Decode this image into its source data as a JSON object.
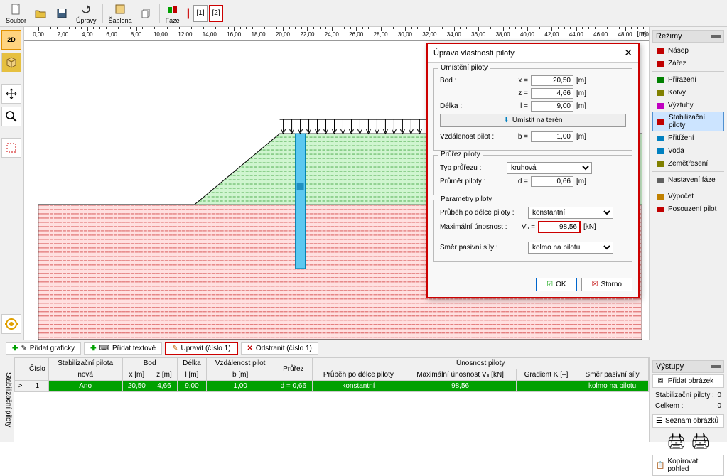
{
  "toolbar": {
    "file_label": "Soubor",
    "edit_label": "Úpravy",
    "template_label": "Šablona",
    "phase_label": "Fáze",
    "phases": [
      "[1]",
      "[2]"
    ]
  },
  "ruler": {
    "start": 0,
    "end": 50,
    "step": 2,
    "unit": "[m]"
  },
  "left_tools": {
    "btn_2d": "2D",
    "btn_3d": "3D"
  },
  "modes": {
    "header": "Režimy",
    "items": [
      {
        "icon": "nasep",
        "label": "Násep",
        "color": "#c00000"
      },
      {
        "icon": "zarez",
        "label": "Zářez",
        "color": "#c00000"
      },
      {
        "icon": "prirazeni",
        "label": "Přiřazení",
        "color": "#008000"
      },
      {
        "icon": "kotvy",
        "label": "Kotvy",
        "color": "#808000"
      },
      {
        "icon": "vyztuhy",
        "label": "Výztuhy",
        "color": "#c000c0"
      },
      {
        "icon": "piloty",
        "label": "Stabilizační piloty",
        "color": "#c00000",
        "active": true
      },
      {
        "icon": "pritizeni",
        "label": "Přitížení",
        "color": "#0080c0"
      },
      {
        "icon": "voda",
        "label": "Voda",
        "color": "#0080c0"
      },
      {
        "icon": "zemetreseni",
        "label": "Zemětřesení",
        "color": "#808000"
      },
      {
        "icon": "nastaveni",
        "label": "Nastavení fáze",
        "color": "#606060"
      },
      {
        "icon": "vypocet",
        "label": "Výpočet",
        "color": "#c08000"
      },
      {
        "icon": "posouzeni",
        "label": "Posouzení pilot",
        "color": "#c00000"
      }
    ]
  },
  "actions": {
    "add_graphic": "Přidat graficky",
    "add_text": "Přidat textově",
    "edit": "Upravit (číslo 1)",
    "delete": "Odstranit (číslo 1)"
  },
  "table": {
    "side_label": "Stabilizační piloty",
    "headers_row1": [
      "Číslo",
      "Stabilizační pilota",
      "Bod",
      "",
      "Délka",
      "Vzdálenost pilot",
      "Průřez",
      "Únosnost piloty",
      "",
      "",
      ""
    ],
    "headers_row2": [
      "",
      "nová",
      "x [m]",
      "z [m]",
      "l [m]",
      "b [m]",
      "",
      "Průběh po délce piloty",
      "Maximální únosnost Vᵤ [kN]",
      "Gradient K [–]",
      "Směr pasivní síly"
    ],
    "row": {
      "num": "1",
      "nova": "Ano",
      "x": "20,50",
      "z": "4,66",
      "l": "9,00",
      "b": "1,00",
      "prurez": "d = 0,66",
      "prubeh": "konstantní",
      "vu": "98,56",
      "gradient": "",
      "smer": "kolmo na pilotu"
    }
  },
  "outputs": {
    "header": "Výstupy",
    "add_image": "Přidat obrázek",
    "stab_label": "Stabilizační piloty :",
    "stab_val": "0",
    "total_label": "Celkem :",
    "total_val": "0",
    "image_list": "Seznam obrázků",
    "copy_view": "Kopírovat pohled"
  },
  "dialog": {
    "title": "Úprava vlastností piloty",
    "group_location": "Umístění piloty",
    "label_bod": "Bod :",
    "var_x": "x =",
    "val_x": "20,50",
    "var_z": "z =",
    "val_z": "4,66",
    "label_delka": "Délka :",
    "var_l": "l =",
    "val_l": "9,00",
    "btn_terrain": "Umístit na terén",
    "label_vzdal": "Vzdálenost pilot :",
    "var_b": "b =",
    "val_b": "1,00",
    "group_prurez": "Průřez piloty",
    "label_typ": "Typ průřezu :",
    "val_typ": "kruhová",
    "label_prumer": "Průměr piloty :",
    "var_d": "d =",
    "val_d": "0,66",
    "group_param": "Parametry piloty",
    "label_prubeh": "Průběh po délce piloty :",
    "val_prubeh": "konstantní",
    "label_max": "Maximální únosnost :",
    "var_vu": "Vᵤ =",
    "val_vu": "98,56",
    "unit_kn": "[kN]",
    "label_smer": "Směr pasivní síly :",
    "val_smer": "kolmo na pilotu",
    "unit_m": "[m]",
    "btn_ok": "OK",
    "btn_cancel": "Storno"
  },
  "drawing": {
    "slope_fill": "#b8f0b8",
    "ground_fill": "#ffc0c0",
    "pile_color": "#4db8e8",
    "hatch_green": "#008000",
    "hatch_red": "#c00000",
    "outline": "#000"
  }
}
